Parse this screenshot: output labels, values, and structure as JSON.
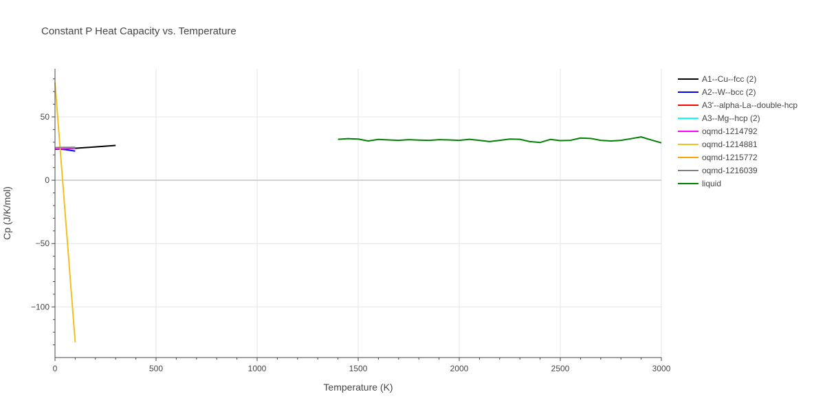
{
  "chart_data": {
    "type": "line",
    "title": "Constant P Heat Capacity vs. Temperature",
    "xlabel": "Temperature (K)",
    "ylabel": "Cp (J/K/mol)",
    "xlim": [
      0,
      3000
    ],
    "ylim": [
      -140,
      88
    ],
    "x_ticks": [
      0,
      500,
      1000,
      1500,
      2000,
      2500,
      3000
    ],
    "x_tick_labels": [
      "0",
      "500",
      "1000",
      "1500",
      "2000",
      "2500",
      "3000"
    ],
    "y_ticks": [
      -100,
      -50,
      0,
      50
    ],
    "y_tick_labels": [
      "−100",
      "−50",
      "0",
      "50"
    ],
    "grid": true,
    "legend_position": "right",
    "series": [
      {
        "name": "A1--Cu--fcc (2)",
        "color": "#000000",
        "x": [
          0,
          100,
          200,
          300
        ],
        "y": [
          24.5,
          25.2,
          26.3,
          27.5
        ]
      },
      {
        "name": "A2--W--bcc (2)",
        "color": "#0000ff",
        "x": [
          0,
          50,
          100
        ],
        "y": [
          24.8,
          24.2,
          23.0
        ]
      },
      {
        "name": "A3'--alpha-La--double-hcp",
        "color": "#ff0000",
        "x": [
          0,
          50,
          100
        ],
        "y": [
          25.4,
          25.5,
          25.6
        ]
      },
      {
        "name": "A3--Mg--hcp (2)",
        "color": "#00ffff",
        "x": [
          0,
          50,
          100
        ],
        "y": [
          25.2,
          25.3,
          25.4
        ]
      },
      {
        "name": "oqmd-1214792",
        "color": "#ff00ff",
        "x": [
          0,
          50,
          100
        ],
        "y": [
          25.0,
          25.1,
          25.2
        ]
      },
      {
        "name": "oqmd-1214881",
        "color": "#f0c020",
        "x": [
          0,
          100
        ],
        "y": [
          77,
          -128
        ]
      },
      {
        "name": "oqmd-1215772",
        "color": "#ffa500",
        "x": [
          0,
          50,
          100
        ],
        "y": [
          25.6,
          25.7,
          25.8
        ]
      },
      {
        "name": "oqmd-1216039",
        "color": "#808080",
        "x": [
          0,
          50,
          100
        ],
        "y": [
          25.8,
          25.9,
          26.0
        ]
      },
      {
        "name": "liquid",
        "color": "#008000",
        "x": [
          1400,
          1450,
          1500,
          1550,
          1600,
          1650,
          1700,
          1750,
          1800,
          1850,
          1900,
          1950,
          2000,
          2050,
          2100,
          2150,
          2200,
          2250,
          2300,
          2350,
          2400,
          2450,
          2500,
          2550,
          2600,
          2650,
          2700,
          2750,
          2800,
          2850,
          2900,
          2950,
          3000
        ],
        "y": [
          32.3,
          32.8,
          32.5,
          31.0,
          32.2,
          31.8,
          31.5,
          32.0,
          31.7,
          31.5,
          32.0,
          31.8,
          31.5,
          32.3,
          31.5,
          30.5,
          31.5,
          32.5,
          32.3,
          30.5,
          29.8,
          32.2,
          31.3,
          31.5,
          33.3,
          33.0,
          31.5,
          31.0,
          31.5,
          32.8,
          34.2,
          31.8,
          29.5
        ]
      }
    ]
  }
}
